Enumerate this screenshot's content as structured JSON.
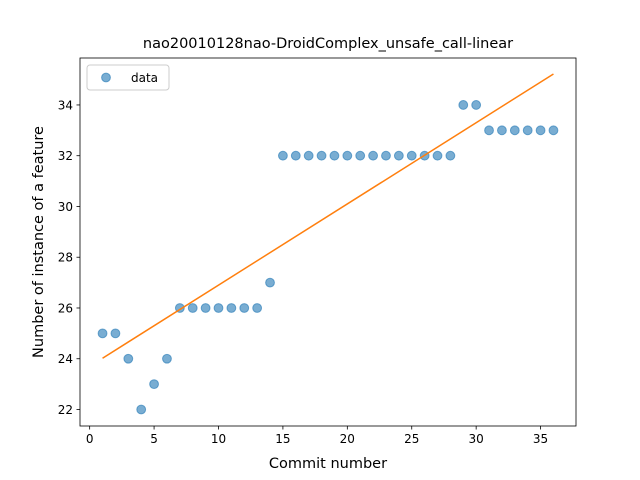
{
  "chart_data": {
    "type": "scatter",
    "title": "nao20010128nao-DroidComplex_unsafe_call-linear",
    "xlabel": "Commit number",
    "ylabel": "Number of instance of a feature",
    "xlim": [
      -0.75,
      37.75
    ],
    "ylim": [
      21.35,
      35.85
    ],
    "xticks": [
      0,
      5,
      10,
      15,
      20,
      25,
      30,
      35
    ],
    "yticks": [
      22,
      24,
      26,
      28,
      30,
      32,
      34
    ],
    "grid": false,
    "legend": {
      "placement": "top-left",
      "entries": [
        "data"
      ]
    },
    "series": [
      {
        "name": "data",
        "kind": "scatter",
        "color": "#1f77b4",
        "alpha": 0.6,
        "x": [
          1,
          2,
          3,
          4,
          5,
          6,
          7,
          8,
          9,
          10,
          11,
          12,
          13,
          14,
          15,
          16,
          17,
          18,
          19,
          20,
          21,
          22,
          23,
          24,
          25,
          26,
          27,
          28,
          29,
          30,
          31,
          32,
          33,
          34,
          35,
          36
        ],
        "y": [
          25,
          25,
          24,
          22,
          23,
          24,
          26,
          26,
          26,
          26,
          26,
          26,
          26,
          27,
          32,
          32,
          32,
          32,
          32,
          32,
          32,
          32,
          32,
          32,
          32,
          32,
          32,
          32,
          34,
          34,
          33,
          33,
          33,
          33,
          33,
          33
        ]
      },
      {
        "kind": "line",
        "color": "#ff7f0e",
        "x": [
          1,
          36
        ],
        "y": [
          24.02,
          35.22
        ]
      }
    ]
  }
}
